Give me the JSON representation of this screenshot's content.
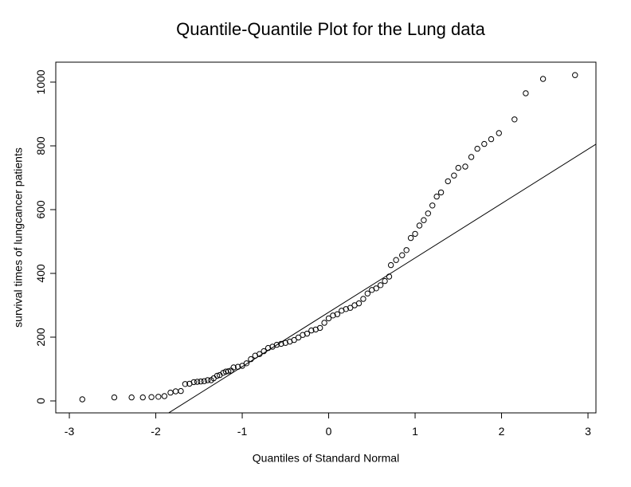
{
  "chart_data": {
    "type": "scatter",
    "title": "Quantile-Quantile Plot for the Lung data",
    "x_label": "Quantiles of Standard Normal",
    "y_label": "survival times of lungcancer patients",
    "xlim": [
      -3.157,
      3.092
    ],
    "ylim": [
      -37.5,
      1062.5
    ],
    "xticks": [
      -3,
      -2,
      -1,
      0,
      1,
      2,
      3
    ],
    "yticks": [
      0,
      200,
      400,
      600,
      800,
      1000
    ],
    "color": "#000000",
    "qq_line": {
      "intercept": 278,
      "slope": 170.5
    },
    "x": [
      -2.85,
      -2.48,
      -2.28,
      -2.15,
      -2.05,
      -1.97,
      -1.9,
      -1.83,
      -1.77,
      -1.71,
      -1.66,
      -1.61,
      -1.56,
      -1.52,
      -1.48,
      -1.44,
      -1.4,
      -1.36,
      -1.33,
      -1.29,
      -1.26,
      -1.22,
      -1.19,
      -1.16,
      -1.13,
      -1.1,
      -1.05,
      -1.0,
      -0.95,
      -0.9,
      -0.85,
      -0.8,
      -0.75,
      -0.7,
      -0.65,
      -0.6,
      -0.55,
      -0.5,
      -0.45,
      -0.4,
      -0.35,
      -0.3,
      -0.25,
      -0.2,
      -0.15,
      -0.1,
      -0.05,
      0,
      0.05,
      0.1,
      0.15,
      0.2,
      0.25,
      0.3,
      0.35,
      0.4,
      0.45,
      0.5,
      0.55,
      0.6,
      0.65,
      0.7,
      0.72,
      0.78,
      0.85,
      0.9,
      0.95,
      1.0,
      1.05,
      1.1,
      1.15,
      1.2,
      1.25,
      1.3,
      1.38,
      1.45,
      1.5,
      1.58,
      1.65,
      1.72,
      1.8,
      1.88,
      1.97,
      2.15,
      2.28,
      2.48,
      2.85
    ],
    "values": [
      5,
      11,
      11,
      11,
      12,
      13,
      15,
      26,
      30,
      31,
      53,
      54,
      59,
      60,
      61,
      62,
      65,
      65,
      71,
      79,
      81,
      88,
      92,
      93,
      95,
      105,
      107,
      110,
      118,
      131,
      142,
      147,
      156,
      166,
      170,
      176,
      179,
      182,
      186,
      191,
      199,
      207,
      211,
      221,
      224,
      229,
      245,
      259,
      268,
      272,
      283,
      288,
      292,
      300,
      306,
      320,
      337,
      348,
      353,
      363,
      376,
      390,
      426,
      442,
      457,
      473,
      511,
      524,
      550,
      567,
      588,
      613,
      641,
      654,
      689,
      707,
      731,
      735,
      765,
      791,
      806,
      821,
      840,
      883,
      965,
      1010,
      1022
    ]
  }
}
